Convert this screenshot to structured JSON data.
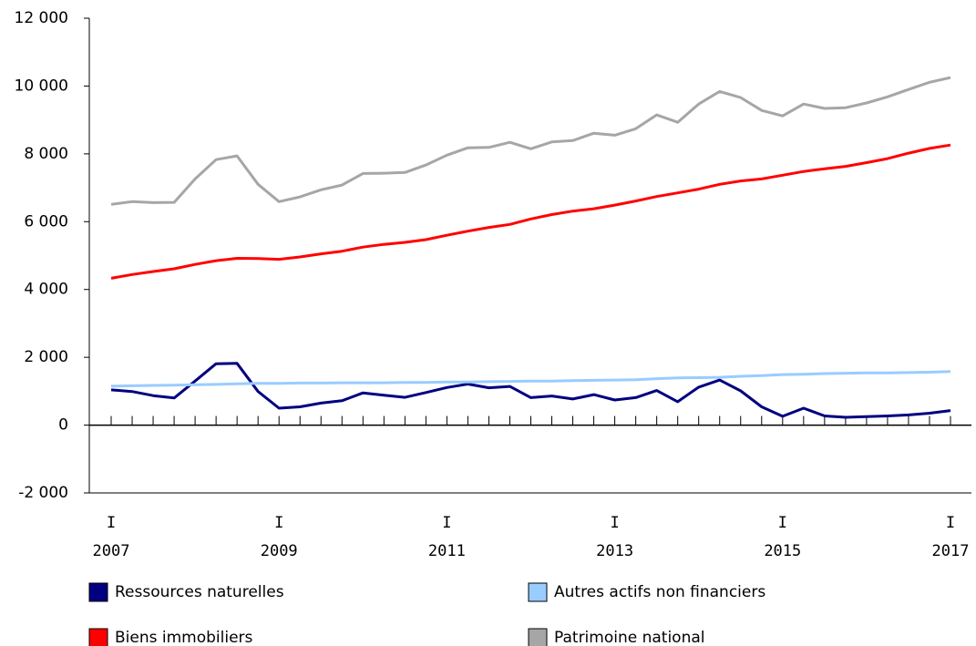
{
  "chart_data": {
    "type": "line",
    "categories": [
      [
        "I",
        "2007"
      ],
      null,
      null,
      null,
      null,
      null,
      null,
      null,
      [
        "I",
        "2009"
      ],
      null,
      null,
      null,
      null,
      null,
      null,
      null,
      [
        "I",
        "2011"
      ],
      null,
      null,
      null,
      null,
      null,
      null,
      null,
      [
        "I",
        "2013"
      ],
      null,
      null,
      null,
      null,
      null,
      null,
      null,
      [
        "I",
        "2015"
      ],
      null,
      null,
      null,
      null,
      null,
      null,
      null,
      [
        "I",
        "2017"
      ]
    ],
    "series": [
      {
        "name": "Ressources naturelles",
        "color": "#000080",
        "values": [
          1040,
          990,
          870,
          800,
          1300,
          1810,
          1820,
          990,
          500,
          540,
          650,
          720,
          950,
          880,
          820,
          960,
          1110,
          1210,
          1100,
          1140,
          810,
          860,
          770,
          900,
          740,
          810,
          1020,
          690,
          1120,
          1330,
          1010,
          540,
          260,
          500,
          270,
          230,
          250,
          270,
          300,
          350,
          430
        ]
      },
      {
        "name": "Autres actifs non financiers",
        "color": "#99ccff",
        "values": [
          1150,
          1160,
          1170,
          1180,
          1190,
          1200,
          1220,
          1230,
          1230,
          1240,
          1240,
          1250,
          1250,
          1250,
          1260,
          1260,
          1270,
          1270,
          1280,
          1290,
          1300,
          1300,
          1310,
          1320,
          1330,
          1340,
          1370,
          1390,
          1400,
          1410,
          1440,
          1460,
          1490,
          1500,
          1520,
          1530,
          1540,
          1540,
          1550,
          1560,
          1580
        ]
      },
      {
        "name": "Biens immobiliers",
        "color": "#ff0000",
        "values": [
          4330,
          4440,
          4530,
          4610,
          4740,
          4850,
          4920,
          4910,
          4890,
          4960,
          5050,
          5130,
          5250,
          5330,
          5390,
          5470,
          5600,
          5720,
          5830,
          5920,
          6080,
          6210,
          6310,
          6380,
          6490,
          6610,
          6740,
          6850,
          6960,
          7100,
          7200,
          7260,
          7370,
          7480,
          7560,
          7630,
          7740,
          7860,
          8020,
          8160,
          8260
        ]
      },
      {
        "name": "Patrimoine national",
        "color": "#a6a6a6",
        "values": [
          6510,
          6590,
          6560,
          6570,
          7260,
          7830,
          7940,
          7100,
          6590,
          6730,
          6940,
          7080,
          7420,
          7430,
          7450,
          7670,
          7960,
          8180,
          8190,
          8340,
          8150,
          8350,
          8390,
          8610,
          8550,
          8740,
          9150,
          8930,
          9470,
          9840,
          9660,
          9280,
          9120,
          9470,
          9340,
          9360,
          9500,
          9680,
          9900,
          10110,
          10250
        ]
      }
    ],
    "ylim": [
      -2000,
      12000
    ],
    "yticks": [
      {
        "value": -2000,
        "label": "-2 000"
      },
      0,
      {
        "value": 2000,
        "label": "2 000"
      },
      {
        "value": 4000,
        "label": "4 000"
      },
      {
        "value": 6000,
        "label": "6 000"
      },
      {
        "value": 8000,
        "label": "8 000"
      },
      {
        "value": 10000,
        "label": "10 000"
      },
      {
        "value": 12000,
        "label": "12 000"
      }
    ],
    "grid": false
  }
}
